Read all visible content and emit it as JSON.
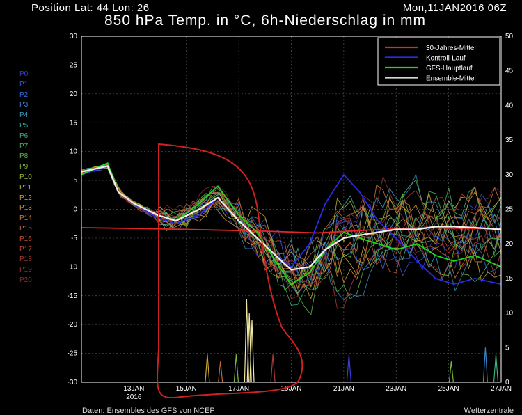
{
  "header": {
    "position": "Position   Lat: 44  Lon: 26",
    "date": "Mon,11JAN2016 06Z",
    "title": "850 hPa Temp. in °C, 6h-Niederschlag in mm"
  },
  "members": [
    {
      "label": "P0",
      "color": "#3b3bd8"
    },
    {
      "label": "P1",
      "color": "#3b55d8"
    },
    {
      "label": "P2",
      "color": "#3a6fd8"
    },
    {
      "label": "P3",
      "color": "#3a86c8"
    },
    {
      "label": "P4",
      "color": "#3c9ab8"
    },
    {
      "label": "P5",
      "color": "#3aaa9a"
    },
    {
      "label": "P6",
      "color": "#3bb07a"
    },
    {
      "label": "P7",
      "color": "#42b55a"
    },
    {
      "label": "P8",
      "color": "#5ab848"
    },
    {
      "label": "P9",
      "color": "#78ba3a"
    },
    {
      "label": "P10",
      "color": "#9aba36"
    },
    {
      "label": "P11",
      "color": "#b8b436"
    },
    {
      "label": "P12",
      "color": "#c8a436"
    },
    {
      "label": "P13",
      "color": "#cc9036"
    },
    {
      "label": "P14",
      "color": "#cc7a36"
    },
    {
      "label": "P15",
      "color": "#c86636"
    },
    {
      "label": "P16",
      "color": "#c05236"
    },
    {
      "label": "P17",
      "color": "#b84436"
    },
    {
      "label": "P18",
      "color": "#a83a34"
    },
    {
      "label": "P19",
      "color": "#983232"
    },
    {
      "label": "P20",
      "color": "#882c2c"
    }
  ],
  "footer": {
    "left": "Daten: Ensembles des GFS von NCEP",
    "right": "Wetterzentrale"
  },
  "chart_data": {
    "type": "line",
    "x_tick_labels": [
      "13JAN\n2016",
      "15JAN",
      "17JAN",
      "19JAN",
      "21JAN",
      "23JAN",
      "25JAN",
      "27JAN"
    ],
    "x_tick_positions_days": [
      2,
      4,
      6,
      8,
      10,
      12,
      14,
      16
    ],
    "x_range_days": [
      0,
      16
    ],
    "y_left": {
      "ticks": [
        30,
        25,
        20,
        15,
        10,
        5,
        0,
        -5,
        -10,
        -15,
        -20,
        -25,
        -30
      ],
      "range": [
        -30,
        30
      ],
      "unit": "°C"
    },
    "y_right": {
      "ticks": [
        50,
        45,
        40,
        35,
        30,
        25,
        20,
        15,
        10,
        5,
        0
      ],
      "range": [
        0,
        50
      ],
      "unit": "mm"
    },
    "legend": [
      {
        "name": "30-Jahres-Mittel",
        "color": "#e02828"
      },
      {
        "name": "Kontroll-Lauf",
        "color": "#2a2ae8"
      },
      {
        "name": "GFS-Hauptlauf",
        "color": "#1ed81e"
      },
      {
        "name": "Ensemble-Mittel",
        "color": "#d8d8d8"
      }
    ],
    "series": [
      {
        "name": "30-Jahres-Mittel",
        "color": "#e02828",
        "x": [
          0,
          3,
          5,
          7,
          9,
          11,
          13,
          16
        ],
        "y": [
          -3.2,
          -3.4,
          -3.6,
          -3.8,
          -4.1,
          -3.6,
          -3.2,
          -3.4
        ]
      },
      {
        "name": "Kontroll-Lauf",
        "color": "#2a2ae8",
        "x": [
          0,
          1,
          1.4,
          2,
          2.9,
          3.6,
          4.5,
          5.2,
          6,
          6.7,
          7.4,
          8,
          8.7,
          9.3,
          10,
          10.6,
          11.3,
          12,
          12.8,
          13.5,
          14.2,
          15,
          16
        ],
        "y": [
          6,
          7.5,
          3,
          1,
          -1.5,
          -2.5,
          -1,
          2,
          -2,
          -5,
          -8,
          -10,
          -6,
          1,
          6,
          3,
          -2,
          -5,
          -9,
          -12,
          -13,
          -12,
          -13
        ]
      },
      {
        "name": "GFS-Hauptlauf",
        "color": "#1ed81e",
        "x": [
          0,
          1,
          1.4,
          2,
          2.9,
          3.6,
          4.5,
          5.2,
          6,
          6.7,
          7.4,
          8,
          8.7,
          9.3,
          10,
          10.6,
          11.3,
          12,
          12.8,
          13.5,
          14.2,
          15,
          16
        ],
        "y": [
          6,
          8,
          3,
          1,
          -1,
          -2,
          1,
          4,
          -1,
          -4,
          -9,
          -13,
          -11,
          -7,
          -4,
          -5,
          -6,
          -7,
          -6,
          -8,
          -9,
          -8,
          -10
        ]
      },
      {
        "name": "Ensemble-Mittel",
        "color": "#f0f0f0",
        "x": [
          0,
          1,
          1.4,
          2,
          2.9,
          3.6,
          4.5,
          5.2,
          6,
          6.7,
          7.4,
          8,
          8.7,
          9.3,
          10,
          10.6,
          11.3,
          12,
          12.8,
          13.5,
          14.2,
          15,
          16
        ],
        "y": [
          6.5,
          7.5,
          3,
          1,
          -1,
          -2,
          0,
          2,
          -2,
          -5,
          -8,
          -10.5,
          -10,
          -7,
          -5,
          -4.5,
          -4,
          -3.5,
          -3.5,
          -3,
          -3,
          -3.2,
          -3.5
        ]
      }
    ],
    "precip_spikes": [
      {
        "x": 6.3,
        "mm": 12
      },
      {
        "x": 6.4,
        "mm": 10
      },
      {
        "x": 6.5,
        "mm": 9
      },
      {
        "x": 5.9,
        "mm": 4
      },
      {
        "x": 4.8,
        "mm": 4
      },
      {
        "x": 5.3,
        "mm": 3
      },
      {
        "x": 7.3,
        "mm": 4
      },
      {
        "x": 10.2,
        "mm": 4
      },
      {
        "x": 15.4,
        "mm": 5
      },
      {
        "x": 15.8,
        "mm": 4
      },
      {
        "x": 14.1,
        "mm": 3
      }
    ]
  }
}
